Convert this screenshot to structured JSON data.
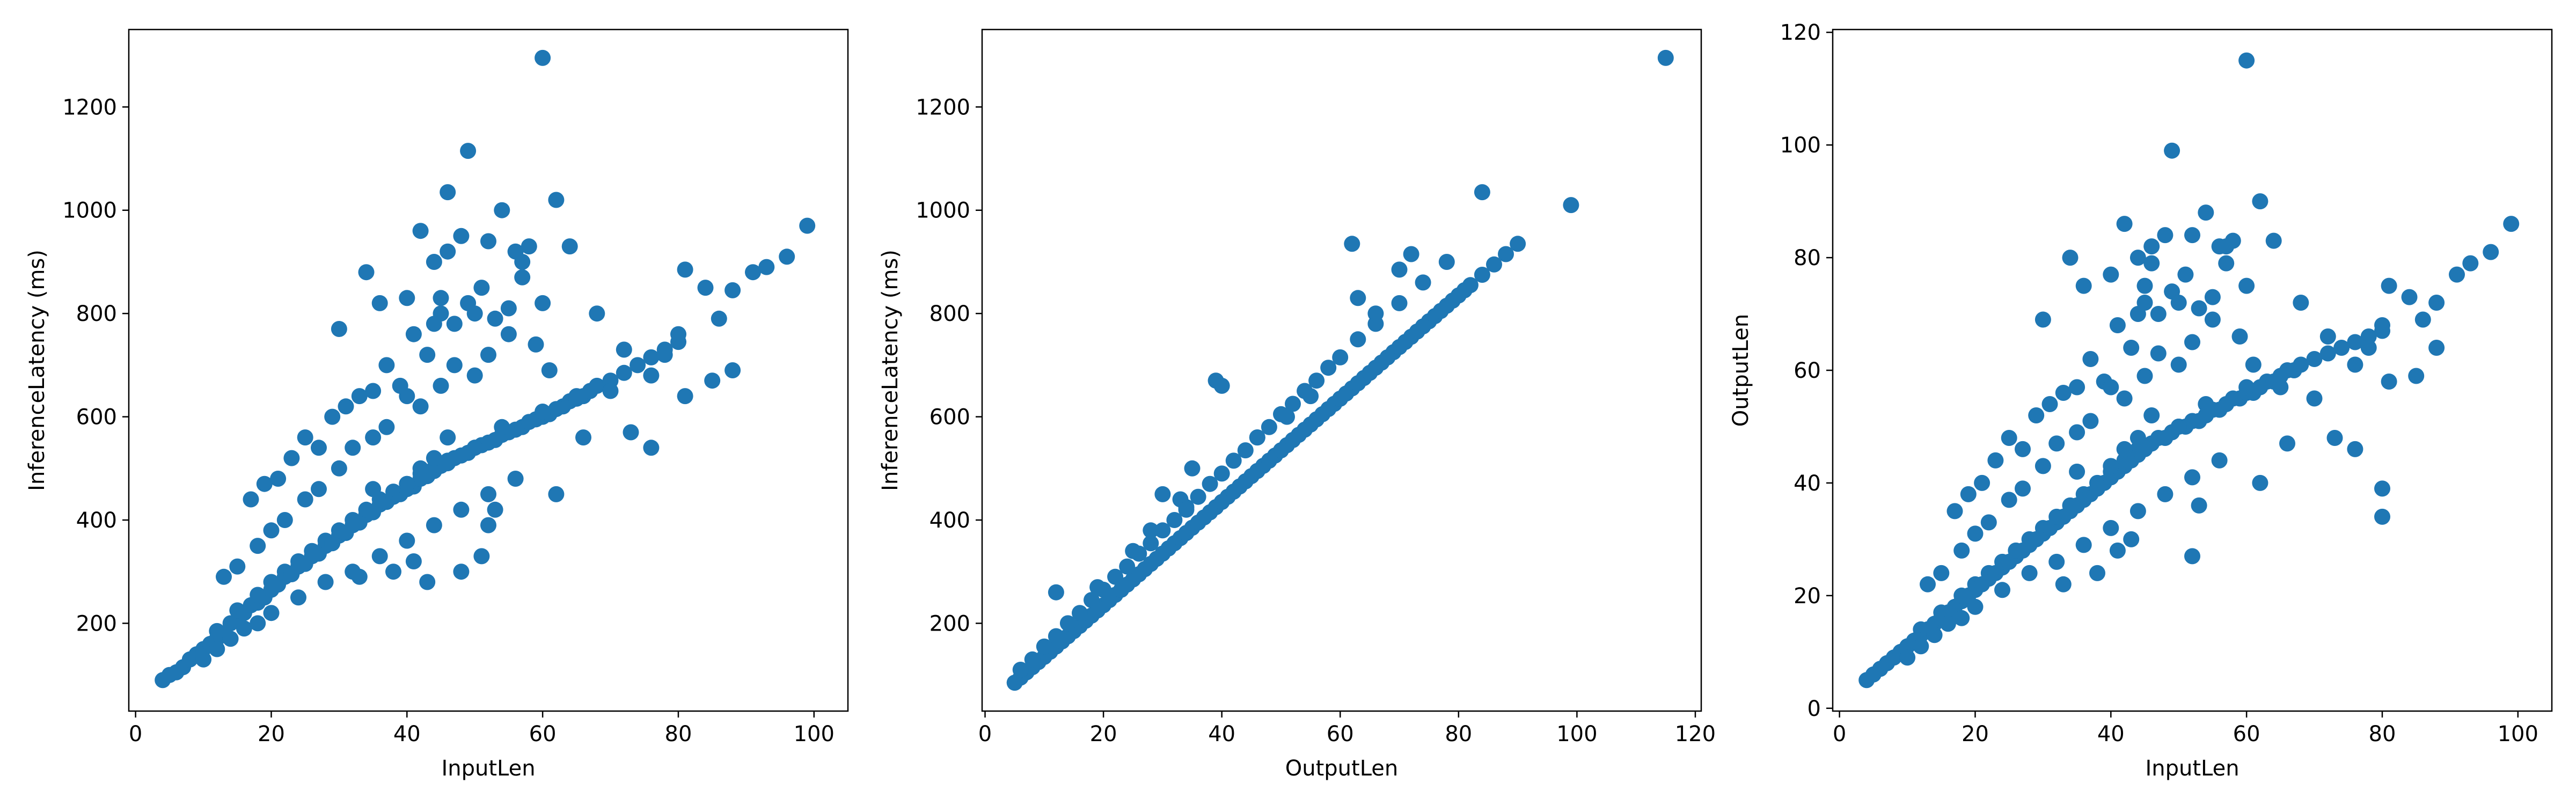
{
  "chart_data": [
    {
      "type": "scatter",
      "title": "",
      "xlabel": "InputLen",
      "ylabel": "InferenceLatency (ms)",
      "xlim": [
        -1,
        105
      ],
      "ylim": [
        30,
        1350
      ],
      "xticks": [
        0,
        20,
        40,
        60,
        80,
        100
      ],
      "yticks": [
        200,
        400,
        600,
        800,
        1000,
        1200
      ],
      "grid": false,
      "color": "#1f77b4",
      "series": [
        {
          "x": [
            4,
            5,
            6,
            7,
            8,
            9,
            10,
            11,
            12,
            12,
            13,
            14,
            15,
            15,
            16,
            17,
            18,
            18,
            19,
            20,
            20,
            21,
            22,
            22,
            23,
            24,
            24,
            25,
            26,
            26,
            27,
            28,
            28,
            29,
            30,
            30,
            31,
            32,
            32,
            33,
            34,
            34,
            35,
            36,
            36,
            37,
            38,
            38,
            39,
            40,
            40,
            41,
            42,
            42,
            43,
            44,
            44,
            45,
            46,
            46,
            47,
            48,
            49,
            50,
            51,
            52,
            53,
            54,
            55,
            56,
            57,
            58,
            59,
            60,
            61,
            62,
            63,
            64,
            65,
            66,
            67,
            68,
            70,
            72,
            74,
            76,
            78,
            80,
            17,
            19,
            21,
            23,
            25,
            27,
            29,
            31,
            33,
            35,
            37,
            39,
            41,
            43,
            45,
            47,
            49,
            51,
            53,
            55,
            57,
            59,
            61,
            13,
            15,
            18,
            20,
            22,
            25,
            27,
            30,
            32,
            35,
            37,
            40,
            42,
            45,
            47,
            50,
            52,
            55,
            60,
            65,
            10,
            12,
            14,
            16,
            18,
            20,
            24,
            28,
            32,
            36,
            40,
            44,
            48,
            52,
            56,
            35,
            40,
            42,
            44,
            46,
            50,
            54,
            60,
            44,
            46,
            48,
            52,
            56,
            58,
            62,
            64,
            49,
            60,
            46,
            44,
            42,
            54,
            57,
            40,
            36,
            34,
            30,
            45,
            50,
            68,
            72,
            76,
            78,
            80,
            81,
            84,
            86,
            88,
            91,
            93,
            96,
            99,
            76,
            81,
            85,
            88,
            66,
            70,
            73,
            51,
            48,
            38,
            33,
            43,
            41,
            52,
            53,
            62
          ],
          "y": [
            90,
            100,
            105,
            115,
            130,
            140,
            150,
            160,
            170,
            185,
            180,
            200,
            205,
            225,
            220,
            235,
            240,
            255,
            250,
            265,
            280,
            275,
            290,
            300,
            295,
            310,
            320,
            315,
            330,
            340,
            335,
            350,
            360,
            355,
            370,
            380,
            375,
            390,
            400,
            395,
            410,
            420,
            415,
            430,
            440,
            435,
            445,
            455,
            450,
            460,
            470,
            465,
            480,
            490,
            485,
            495,
            500,
            505,
            515,
            510,
            520,
            525,
            530,
            540,
            545,
            550,
            555,
            565,
            570,
            575,
            580,
            590,
            595,
            600,
            605,
            615,
            620,
            630,
            635,
            640,
            650,
            660,
            670,
            685,
            700,
            715,
            730,
            745,
            440,
            470,
            480,
            520,
            560,
            540,
            600,
            620,
            640,
            650,
            700,
            660,
            760,
            720,
            800,
            780,
            820,
            850,
            790,
            810,
            870,
            740,
            690,
            290,
            310,
            350,
            380,
            400,
            440,
            460,
            500,
            540,
            560,
            580,
            640,
            620,
            660,
            700,
            680,
            720,
            760,
            820,
            640,
            130,
            150,
            170,
            190,
            200,
            220,
            250,
            280,
            300,
            330,
            360,
            390,
            420,
            450,
            480,
            460,
            470,
            500,
            520,
            560,
            540,
            580,
            610,
            900,
            920,
            950,
            940,
            920,
            930,
            1020,
            930,
            1115,
            1295,
            1035,
            780,
            960,
            1000,
            900,
            830,
            820,
            880,
            770,
            830,
            800,
            800,
            730,
            680,
            720,
            760,
            885,
            850,
            790,
            845,
            880,
            890,
            910,
            970,
            540,
            640,
            670,
            690,
            560,
            650,
            570,
            330,
            300,
            300,
            290,
            280,
            320,
            390,
            420,
            450
          ]
        }
      ]
    },
    {
      "type": "scatter",
      "title": "",
      "xlabel": "OutputLen",
      "ylabel": "InferenceLatency (ms)",
      "xlim": [
        -0.5,
        121
      ],
      "ylim": [
        30,
        1350
      ],
      "xticks": [
        0,
        20,
        40,
        60,
        80,
        100,
        120
      ],
      "yticks": [
        200,
        400,
        600,
        800,
        1000,
        1200
      ],
      "grid": false,
      "color": "#1f77b4",
      "series": [
        {
          "x": [
            5,
            6,
            7,
            8,
            9,
            10,
            11,
            12,
            13,
            14,
            15,
            16,
            17,
            18,
            19,
            20,
            21,
            22,
            23,
            24,
            25,
            26,
            27,
            28,
            29,
            30,
            31,
            32,
            33,
            34,
            35,
            36,
            37,
            38,
            39,
            40,
            41,
            42,
            43,
            44,
            45,
            46,
            47,
            48,
            49,
            50,
            51,
            52,
            53,
            54,
            55,
            56,
            57,
            58,
            59,
            60,
            61,
            62,
            63,
            64,
            65,
            66,
            67,
            68,
            69,
            70,
            71,
            72,
            73,
            74,
            75,
            76,
            77,
            78,
            79,
            80,
            81,
            82,
            84,
            86,
            88,
            90,
            99,
            115,
            6,
            8,
            10,
            12,
            14,
            16,
            18,
            20,
            22,
            24,
            26,
            28,
            30,
            32,
            34,
            36,
            38,
            40,
            42,
            44,
            46,
            48,
            50,
            52,
            54,
            56,
            58,
            60,
            63,
            66,
            70,
            74,
            78,
            12,
            19,
            25,
            28,
            30,
            33,
            34,
            35,
            39,
            40,
            46,
            51,
            55,
            62,
            63,
            66,
            70,
            72,
            84
          ],
          "y": [
            85,
            95,
            105,
            115,
            125,
            135,
            145,
            155,
            165,
            175,
            185,
            195,
            205,
            215,
            225,
            235,
            245,
            255,
            265,
            275,
            285,
            295,
            305,
            315,
            325,
            335,
            345,
            355,
            365,
            375,
            385,
            395,
            405,
            415,
            425,
            435,
            445,
            455,
            465,
            475,
            485,
            495,
            505,
            515,
            525,
            535,
            545,
            555,
            565,
            575,
            585,
            595,
            605,
            615,
            625,
            635,
            645,
            655,
            665,
            675,
            685,
            695,
            705,
            715,
            725,
            735,
            745,
            755,
            765,
            775,
            785,
            795,
            805,
            815,
            825,
            835,
            845,
            855,
            875,
            895,
            915,
            935,
            1010,
            1295,
            110,
            130,
            155,
            175,
            200,
            220,
            245,
            265,
            290,
            310,
            335,
            355,
            380,
            400,
            425,
            445,
            470,
            490,
            515,
            535,
            560,
            580,
            605,
            625,
            650,
            670,
            695,
            715,
            750,
            780,
            820,
            860,
            900,
            260,
            270,
            340,
            380,
            450,
            440,
            420,
            500,
            670,
            660,
            560,
            600,
            640,
            935,
            830,
            800,
            885,
            915,
            1035
          ]
        }
      ]
    },
    {
      "type": "scatter",
      "title": "",
      "xlabel": "InputLen",
      "ylabel": "OutputLen",
      "xlim": [
        -1,
        105
      ],
      "ylim": [
        -0.5,
        120.5
      ],
      "xticks": [
        0,
        20,
        40,
        60,
        80,
        100
      ],
      "yticks": [
        0,
        20,
        40,
        60,
        80,
        100,
        120
      ],
      "grid": false,
      "color": "#1f77b4",
      "series": [
        {
          "x": [
            4,
            5,
            6,
            7,
            8,
            9,
            10,
            11,
            12,
            12,
            13,
            14,
            15,
            15,
            16,
            17,
            18,
            18,
            19,
            20,
            20,
            21,
            22,
            22,
            23,
            24,
            24,
            25,
            26,
            26,
            27,
            28,
            28,
            29,
            30,
            30,
            31,
            32,
            32,
            33,
            34,
            34,
            35,
            36,
            36,
            37,
            38,
            38,
            39,
            40,
            40,
            41,
            42,
            42,
            43,
            44,
            44,
            45,
            46,
            46,
            47,
            48,
            49,
            50,
            51,
            52,
            53,
            54,
            55,
            56,
            57,
            58,
            59,
            60,
            61,
            62,
            63,
            64,
            65,
            66,
            67,
            68,
            70,
            72,
            74,
            76,
            78,
            80,
            17,
            19,
            21,
            23,
            25,
            27,
            29,
            31,
            33,
            35,
            37,
            39,
            41,
            43,
            45,
            47,
            49,
            51,
            53,
            55,
            57,
            59,
            61,
            13,
            15,
            18,
            20,
            22,
            25,
            27,
            30,
            32,
            35,
            37,
            40,
            42,
            45,
            47,
            50,
            52,
            55,
            60,
            65,
            10,
            12,
            14,
            16,
            18,
            20,
            24,
            28,
            32,
            36,
            40,
            44,
            48,
            52,
            56,
            35,
            40,
            42,
            44,
            46,
            50,
            54,
            60,
            44,
            46,
            48,
            52,
            56,
            58,
            62,
            64,
            49,
            60,
            46,
            44,
            42,
            54,
            57,
            40,
            36,
            34,
            30,
            45,
            50,
            68,
            72,
            76,
            78,
            80,
            81,
            84,
            86,
            88,
            91,
            93,
            96,
            99,
            76,
            81,
            85,
            88,
            66,
            70,
            73,
            80,
            80,
            38,
            33,
            43,
            41,
            52,
            53,
            62
          ],
          "y": [
            5,
            6,
            7,
            8,
            9,
            10,
            11,
            12,
            13,
            14,
            14,
            15,
            16,
            17,
            17,
            18,
            19,
            20,
            20,
            21,
            22,
            22,
            23,
            24,
            24,
            25,
            26,
            26,
            27,
            28,
            28,
            29,
            30,
            30,
            31,
            32,
            32,
            33,
            34,
            34,
            35,
            36,
            36,
            37,
            38,
            38,
            39,
            40,
            40,
            41,
            42,
            42,
            43,
            44,
            44,
            45,
            46,
            46,
            47,
            47,
            48,
            48,
            49,
            50,
            50,
            51,
            51,
            52,
            53,
            53,
            54,
            55,
            55,
            56,
            56,
            57,
            58,
            58,
            59,
            60,
            60,
            61,
            62,
            63,
            64,
            65,
            66,
            67,
            35,
            38,
            40,
            44,
            48,
            46,
            52,
            54,
            56,
            57,
            62,
            58,
            68,
            64,
            72,
            70,
            74,
            77,
            71,
            73,
            79,
            66,
            61,
            22,
            24,
            28,
            31,
            33,
            37,
            39,
            43,
            47,
            49,
            51,
            57,
            55,
            59,
            63,
            61,
            65,
            69,
            75,
            57,
            9,
            11,
            13,
            15,
            16,
            18,
            21,
            24,
            26,
            29,
            32,
            35,
            38,
            41,
            44,
            42,
            43,
            46,
            48,
            52,
            50,
            54,
            57,
            80,
            82,
            84,
            84,
            82,
            83,
            90,
            83,
            99,
            115,
            79,
            70,
            86,
            88,
            82,
            77,
            75,
            80,
            69,
            75,
            72,
            72,
            66,
            61,
            64,
            68,
            75,
            73,
            69,
            72,
            77,
            79,
            81,
            86,
            46,
            58,
            59,
            64,
            47,
            55,
            48,
            39,
            34,
            24,
            22,
            30,
            28,
            27,
            36,
            40
          ]
        }
      ]
    }
  ]
}
